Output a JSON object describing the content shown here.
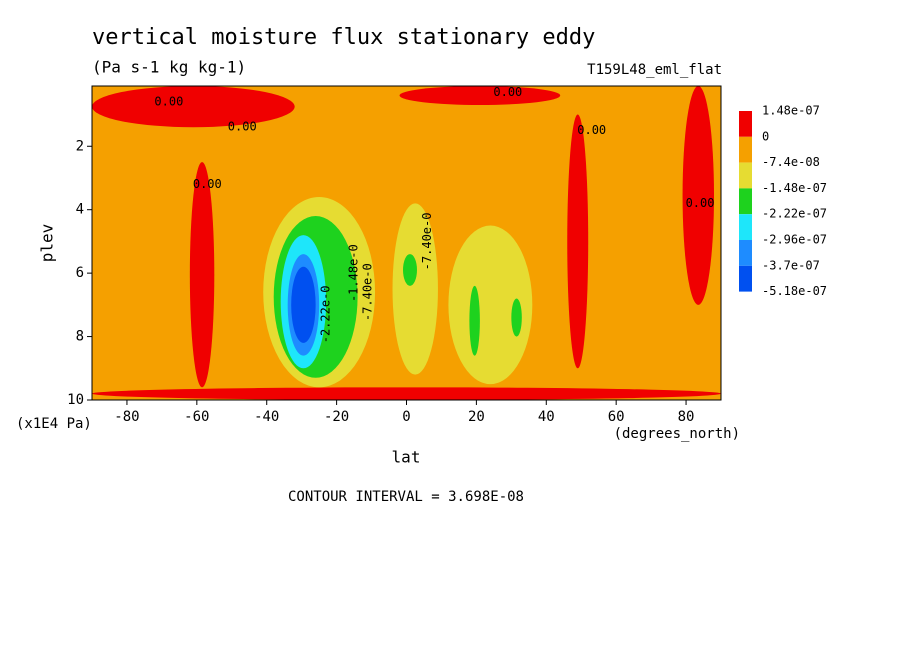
{
  "chart_data": {
    "type": "contour",
    "title": "vertical moisture flux stationary eddy",
    "subtitle": "(Pa s-1 kg kg-1)",
    "run_label": "T159L48_eml_flat",
    "x_label": "lat",
    "x_units": "(degrees_north)",
    "y_label": "plev",
    "y_units": "(x1E4 Pa)",
    "xlim": [
      -90,
      90
    ],
    "xticks": [
      -80,
      -60,
      -40,
      -20,
      0,
      20,
      40,
      60,
      80
    ],
    "ylim": [
      10,
      0.1
    ],
    "yticks": [
      10,
      8,
      6,
      4,
      2
    ],
    "colorbar": [
      {
        "value": 1.48e-07,
        "label": "1.48e-07"
      },
      0,
      {
        "value": -7.4e-08,
        "label": "-7.4e-08"
      },
      {
        "value": -1.48e-07,
        "label": "-1.48e-07"
      },
      {
        "value": -2.22e-07,
        "label": "-2.22e-07"
      },
      {
        "value": -2.96e-07,
        "label": "-2.96e-07"
      },
      {
        "value": -3.7e-07,
        "label": "-3.7e-07"
      },
      {
        "value": -5.18e-07,
        "label": "-5.18e-07"
      }
    ],
    "colors": [
      "#f00000",
      "#f5a000",
      "#e6dc32",
      "#1ed21e",
      "#1ee6fa",
      "#1e8cff",
      "#0050f0"
    ],
    "regions": [
      {
        "color": "#f5a000",
        "level": -7.4e-08,
        "lat": [
          -90,
          90
        ],
        "plev": [
          10,
          0.1
        ]
      },
      {
        "color": "#f00000",
        "level": 0,
        "lat": [
          -90,
          -32
        ],
        "plev": [
          1.4,
          0.1
        ]
      },
      {
        "color": "#f00000",
        "level": 0,
        "lat": [
          -62,
          -55
        ],
        "plev": [
          9.6,
          2.5
        ]
      },
      {
        "color": "#f00000",
        "level": 0,
        "lat": [
          -2,
          44
        ],
        "plev": [
          0.7,
          0.1
        ]
      },
      {
        "color": "#f00000",
        "level": 0,
        "lat": [
          46,
          52
        ],
        "plev": [
          9,
          1
        ]
      },
      {
        "color": "#f00000",
        "level": 0,
        "lat": [
          79,
          88
        ],
        "plev": [
          7,
          0.1
        ]
      },
      {
        "color": "#f00000",
        "level": 0,
        "lat": [
          -90,
          90
        ],
        "plev": [
          10,
          9.6
        ]
      },
      {
        "color": "#e6dc32",
        "level": -1.48e-07,
        "lat": [
          -41,
          -9
        ],
        "plev": [
          9.6,
          3.6
        ]
      },
      {
        "color": "#1ed21e",
        "level": -2.22e-07,
        "lat": [
          -38,
          -14
        ],
        "plev": [
          9.3,
          4.2
        ]
      },
      {
        "color": "#1ee6fa",
        "level": -2.96e-07,
        "lat": [
          -36,
          -23
        ],
        "plev": [
          9,
          4.8
        ]
      },
      {
        "color": "#1e8cff",
        "level": -3.7e-07,
        "lat": [
          -34,
          -25
        ],
        "plev": [
          8.6,
          5.4
        ]
      },
      {
        "color": "#0050f0",
        "level": -5.18e-07,
        "lat": [
          -33,
          -26
        ],
        "plev": [
          8.2,
          5.8
        ]
      },
      {
        "color": "#e6dc32",
        "level": -1.48e-07,
        "lat": [
          -4,
          9
        ],
        "plev": [
          9.2,
          3.8
        ]
      },
      {
        "color": "#1ed21e",
        "level": -2.22e-07,
        "lat": [
          -1,
          3
        ],
        "plev": [
          6.4,
          5.4
        ]
      },
      {
        "color": "#e6dc32",
        "level": -1.48e-07,
        "lat": [
          12,
          36
        ],
        "plev": [
          9.5,
          4.5
        ]
      },
      {
        "color": "#1ed21e",
        "level": -2.22e-07,
        "lat": [
          18,
          21
        ],
        "plev": [
          8.6,
          6.4
        ]
      },
      {
        "color": "#1ed21e",
        "level": -2.22e-07,
        "lat": [
          30,
          33
        ],
        "plev": [
          8,
          6.8
        ]
      }
    ],
    "contour_labels": [
      {
        "text": "0.00",
        "lat": -68,
        "plev": 0.6
      },
      {
        "text": "0.00",
        "lat": -47,
        "plev": 1.4
      },
      {
        "text": "0.00",
        "lat": -57,
        "plev": 3.2
      },
      {
        "text": "0.00",
        "lat": 29,
        "plev": 0.3
      },
      {
        "text": "0.00",
        "lat": 53,
        "plev": 1.5
      },
      {
        "text": "0.00",
        "lat": 84,
        "plev": 3.8
      },
      {
        "text": "-2.22e-0",
        "lat": -23,
        "plev": 7.3
      },
      {
        "text": "-1.48e-0",
        "lat": -15,
        "plev": 6
      },
      {
        "text": "-7.40e-0",
        "lat": -11,
        "plev": 6.6
      },
      {
        "text": "-7.40e-0",
        "lat": 6,
        "plev": 5
      }
    ],
    "footnote": "CONTOUR INTERVAL = 3.698E-08"
  }
}
